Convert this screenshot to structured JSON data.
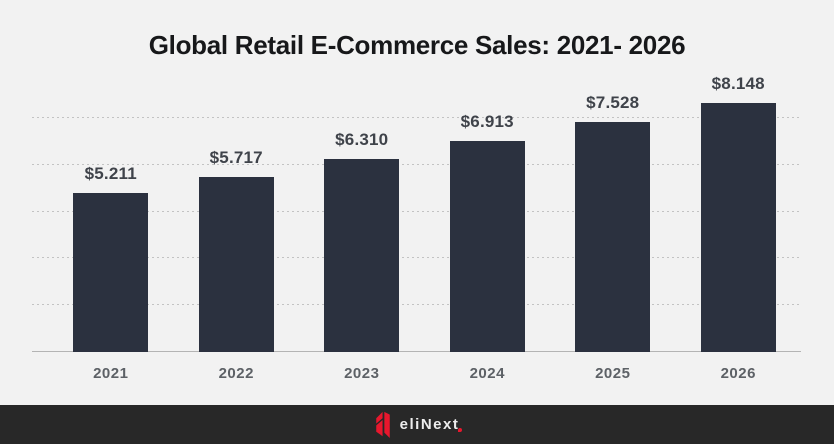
{
  "page": {
    "background": "#f2f2f2"
  },
  "chart_data": {
    "type": "bar",
    "title": "Global Retail E-Commerce Sales: 2021- 2026",
    "categories": [
      "2021",
      "2022",
      "2023",
      "2024",
      "2025",
      "2026"
    ],
    "values": [
      5.211,
      5.717,
      6.31,
      6.913,
      7.528,
      8.148
    ],
    "value_labels": [
      "$5.211",
      "$5.717",
      "$6.310",
      "$6.913",
      "$7.528",
      "$8.148"
    ],
    "xlabel": "",
    "ylabel": "",
    "y_axis_visible": false,
    "grid": true,
    "gridline_style": "dotted",
    "gridline_count": 5,
    "legend": "none",
    "bar_color": "#2b313f",
    "value_label_color": "#3f434a",
    "tick_label_color": "#5d6166"
  },
  "footer": {
    "wordmark": "eliNext",
    "accent_color": "#e8172d",
    "background": "#282828"
  }
}
